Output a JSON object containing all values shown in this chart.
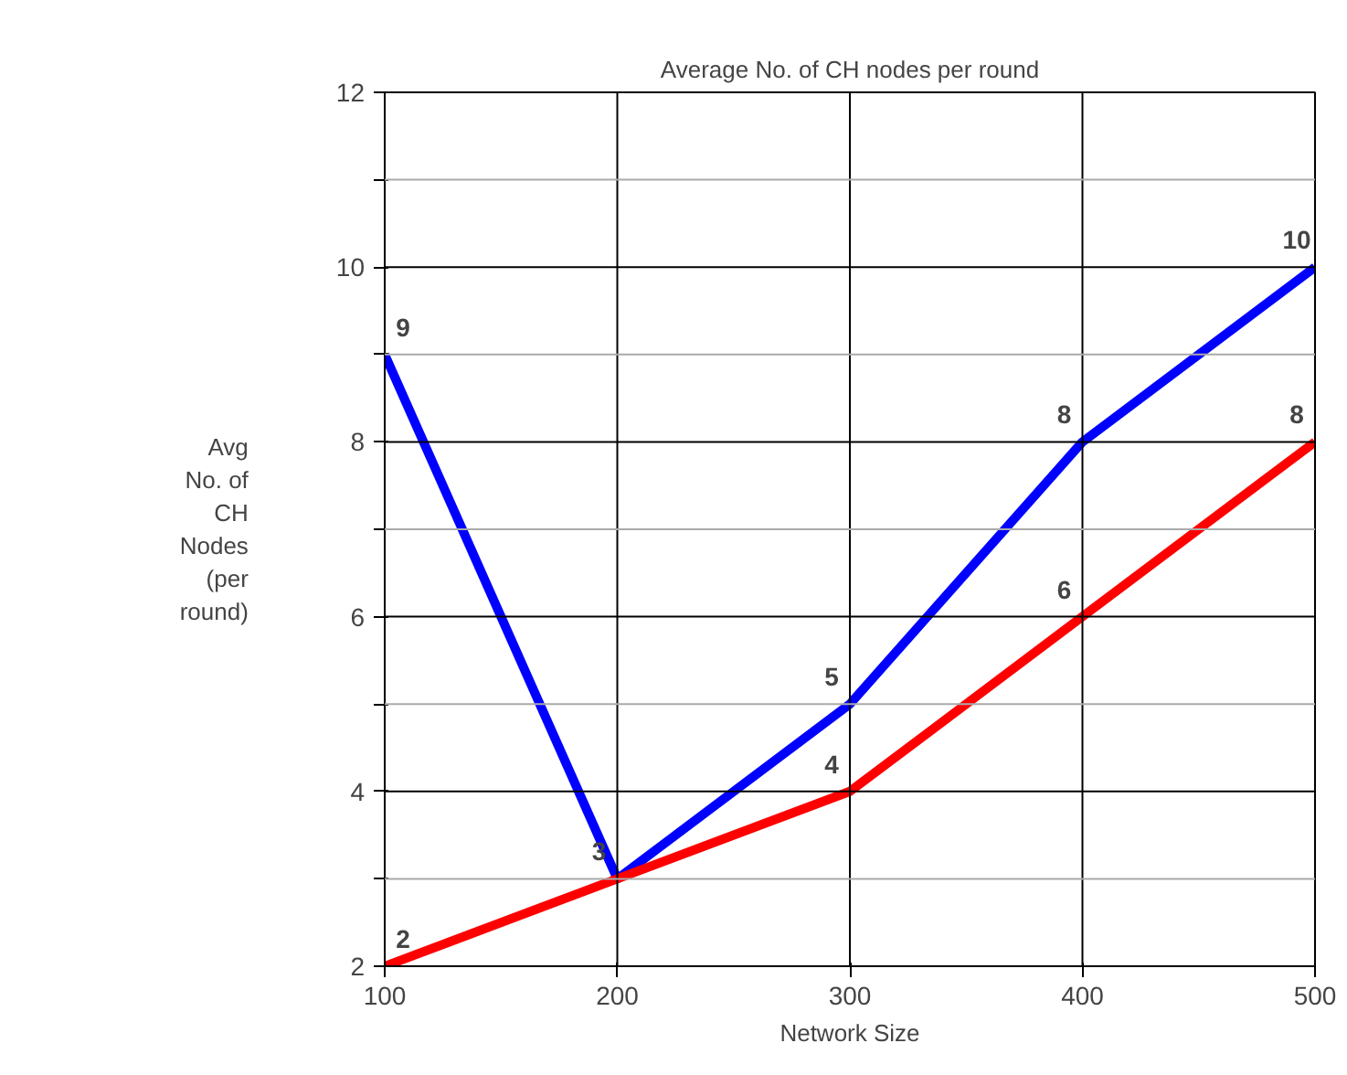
{
  "chart_data": {
    "type": "line",
    "title": "Average No. of CH nodes per round",
    "xlabel": "Network Size",
    "ylabel": "Avg\nNo. of\nCH\nNodes\n(per\nround)",
    "x": [
      100,
      200,
      300,
      400,
      500
    ],
    "series": [
      {
        "color": "#0000ff",
        "values": [
          9,
          3,
          5,
          8,
          10
        ],
        "value_labels": [
          "9",
          "3",
          "5",
          "8",
          "10"
        ]
      },
      {
        "color": "#ff0000",
        "values": [
          2,
          3,
          4,
          6,
          8
        ],
        "value_labels": [
          "2",
          null,
          "4",
          "6",
          "8"
        ]
      }
    ],
    "xlim": [
      100,
      500
    ],
    "xticks": [
      100,
      200,
      300,
      400,
      500
    ],
    "ylim": [
      2,
      12
    ],
    "yticks": [
      2,
      {
        "value": 3,
        "label": null
      },
      4,
      {
        "value": 5,
        "label": null
      },
      6,
      {
        "value": 7,
        "label": null
      },
      8,
      {
        "value": 9,
        "label": null
      },
      10,
      {
        "value": 11,
        "label": null
      },
      12
    ],
    "grid": true,
    "marker": "none",
    "line_style": "solid"
  }
}
